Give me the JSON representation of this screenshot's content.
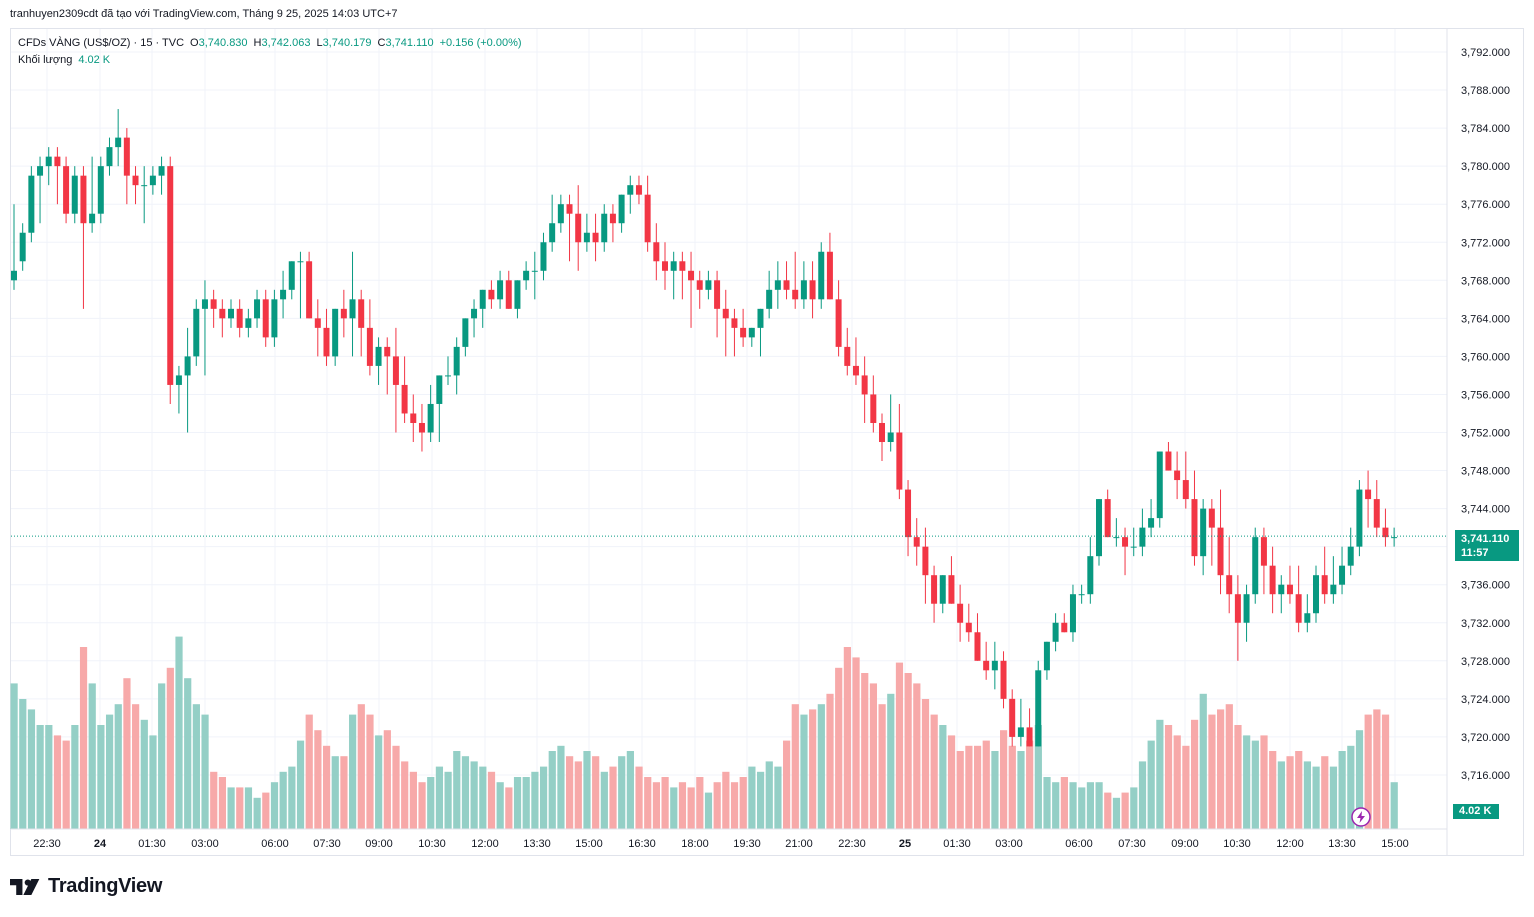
{
  "attribution": "tranhuyen2309cdt đã tạo với TradingView.com, Tháng 9 25, 2025 14:03 UTC+7",
  "legend": {
    "symbol": "CFDs VÀNG (US$/OZ) · 15 · TVC",
    "o_label": "O",
    "o_value": "3,740.830",
    "h_label": "H",
    "h_value": "3,742.063",
    "l_label": "L",
    "l_value": "3,740.179",
    "c_label": "C",
    "c_value": "3,741.110",
    "change": "+0.156 (+0.00%)",
    "volume_label": "Khối lượng",
    "volume_value": "4.02 K"
  },
  "badges": {
    "price": "3,741.110",
    "countdown": "11:57",
    "volume": "4.02 K"
  },
  "brand": {
    "name": "TradingView"
  },
  "colors": {
    "up": "#089981",
    "down": "#f23645",
    "volume_up": "#94cfc6",
    "volume_down": "#f7a9a9",
    "grid": "#f0f3fa"
  },
  "icons": [
    "tradingview-logo-icon",
    "lightning-icon"
  ],
  "chart_data": {
    "type": "candlestick",
    "interval": "15",
    "y_ticks": [
      "3,792.000",
      "3,788.000",
      "3,784.000",
      "3,780.000",
      "3,776.000",
      "3,772.000",
      "3,768.000",
      "3,764.000",
      "3,760.000",
      "3,756.000",
      "3,752.000",
      "3,748.000",
      "3,744.000",
      "3,740.000",
      "3,736.000",
      "3,732.000",
      "3,728.000",
      "3,724.000",
      "3,720.000",
      "3,716.000"
    ],
    "x_ticks": [
      "22:30",
      "24",
      "01:30",
      "03:00",
      "06:00",
      "07:30",
      "09:00",
      "10:30",
      "12:00",
      "13:30",
      "15:00",
      "16:30",
      "18:00",
      "19:30",
      "21:00",
      "22:30",
      "25",
      "01:30",
      "03:00",
      "06:00",
      "07:30",
      "09:00",
      "10:30",
      "12:00",
      "13:30",
      "15:00"
    ],
    "ylim": [
      3714,
      3794
    ],
    "last_price": 3741.11,
    "candles": [
      [
        3768,
        3776,
        3767,
        3769,
        2.8
      ],
      [
        3770,
        3774,
        3769,
        3773,
        2.5
      ],
      [
        3773,
        3780,
        3772,
        3779,
        2.3
      ],
      [
        3779,
        3781,
        3774,
        3780,
        2.0
      ],
      [
        3780,
        3782,
        3778,
        3781,
        2.0
      ],
      [
        3781,
        3782,
        3776,
        3780,
        1.8
      ],
      [
        3780,
        3781,
        3774,
        3775,
        1.7
      ],
      [
        3775,
        3780,
        3774,
        3779,
        2.0
      ],
      [
        3779,
        3780,
        3765,
        3774,
        3.5
      ],
      [
        3774,
        3781,
        3773,
        3775,
        2.8
      ],
      [
        3775,
        3781,
        3774,
        3780,
        2.0
      ],
      [
        3780,
        3783,
        3779,
        3782,
        2.2
      ],
      [
        3782,
        3786,
        3780,
        3783,
        2.4
      ],
      [
        3783,
        3784,
        3776,
        3779,
        2.9
      ],
      [
        3779,
        3780,
        3776,
        3778,
        2.4
      ],
      [
        3778,
        3780,
        3774,
        3778,
        2.1
      ],
      [
        3778,
        3780,
        3777,
        3779,
        1.8
      ],
      [
        3779,
        3781,
        3777,
        3780,
        2.8
      ],
      [
        3780,
        3781,
        3755,
        3757,
        3.1
      ],
      [
        3757,
        3759,
        3754,
        3758,
        3.7
      ],
      [
        3758,
        3763,
        3752,
        3760,
        2.9
      ],
      [
        3760,
        3766,
        3759,
        3765,
        2.4
      ],
      [
        3765,
        3768,
        3758,
        3766,
        2.2
      ],
      [
        3766,
        3767,
        3763,
        3765,
        1.1
      ],
      [
        3765,
        3766,
        3762,
        3764,
        1.0
      ],
      [
        3764,
        3766,
        3763,
        3765,
        0.8
      ],
      [
        3765,
        3766,
        3762,
        3763,
        0.8
      ],
      [
        3763,
        3765,
        3762,
        3764,
        0.8
      ],
      [
        3764,
        3767,
        3763,
        3766,
        0.6
      ],
      [
        3766,
        3767,
        3761,
        3762,
        0.7
      ],
      [
        3762,
        3767,
        3761,
        3766,
        0.9
      ],
      [
        3766,
        3769,
        3764,
        3767,
        1.1
      ],
      [
        3767,
        3770,
        3766,
        3770,
        1.2
      ],
      [
        3770,
        3771,
        3764,
        3770,
        1.7
      ],
      [
        3770,
        3771,
        3764,
        3764,
        2.2
      ],
      [
        3764,
        3766,
        3760,
        3763,
        1.9
      ],
      [
        3763,
        3765,
        3759,
        3760,
        1.6
      ],
      [
        3760,
        3765,
        3759,
        3765,
        1.4
      ],
      [
        3765,
        3767,
        3762,
        3764,
        1.4
      ],
      [
        3764,
        3771,
        3760,
        3766,
        2.2
      ],
      [
        3766,
        3767,
        3760,
        3763,
        2.4
      ],
      [
        3763,
        3766,
        3758,
        3759,
        2.2
      ],
      [
        3759,
        3762,
        3757,
        3761,
        1.8
      ],
      [
        3761,
        3762,
        3756,
        3760,
        1.9
      ],
      [
        3760,
        3763,
        3752,
        3757,
        1.6
      ],
      [
        3757,
        3760,
        3753,
        3754,
        1.3
      ],
      [
        3754,
        3756,
        3751,
        3753,
        1.1
      ],
      [
        3753,
        3755,
        3750,
        3752,
        0.9
      ],
      [
        3752,
        3757,
        3751,
        3755,
        1.0
      ],
      [
        3755,
        3758,
        3751,
        3758,
        1.2
      ],
      [
        3758,
        3760,
        3757,
        3758,
        1.1
      ],
      [
        3758,
        3762,
        3756,
        3761,
        1.5
      ],
      [
        3761,
        3764,
        3760,
        3764,
        1.4
      ],
      [
        3764,
        3766,
        3762,
        3765,
        1.3
      ],
      [
        3765,
        3767,
        3763,
        3767,
        1.2
      ],
      [
        3767,
        3768,
        3765,
        3766,
        1.1
      ],
      [
        3766,
        3769,
        3765,
        3768,
        0.9
      ],
      [
        3768,
        3769,
        3765,
        3765,
        0.8
      ],
      [
        3765,
        3768,
        3764,
        3768,
        1.0
      ],
      [
        3768,
        3770,
        3767,
        3769,
        1.0
      ],
      [
        3769,
        3771,
        3766,
        3769,
        1.1
      ],
      [
        3769,
        3773,
        3768,
        3772,
        1.2
      ],
      [
        3772,
        3777,
        3771,
        3774,
        1.5
      ],
      [
        3774,
        3777,
        3773,
        3776,
        1.6
      ],
      [
        3776,
        3777,
        3770,
        3775,
        1.4
      ],
      [
        3775,
        3778,
        3769,
        3772,
        1.3
      ],
      [
        3772,
        3775,
        3771,
        3773,
        1.5
      ],
      [
        3773,
        3775,
        3770,
        3772,
        1.4
      ],
      [
        3772,
        3776,
        3771,
        3775,
        1.1
      ],
      [
        3775,
        3776,
        3772,
        3774,
        1.2
      ],
      [
        3774,
        3777,
        3773,
        3777,
        1.4
      ],
      [
        3777,
        3779,
        3775,
        3778,
        1.5
      ],
      [
        3778,
        3779,
        3776,
        3777,
        1.2
      ],
      [
        3777,
        3779,
        3771,
        3772,
        1.0
      ],
      [
        3772,
        3774,
        3768,
        3770,
        0.9
      ],
      [
        3770,
        3772,
        3767,
        3769,
        1.0
      ],
      [
        3769,
        3771,
        3766,
        3770,
        0.8
      ],
      [
        3770,
        3771,
        3766,
        3769,
        0.9
      ],
      [
        3769,
        3771,
        3763,
        3768,
        0.8
      ],
      [
        3768,
        3769,
        3765,
        3767,
        1.0
      ],
      [
        3767,
        3769,
        3766,
        3768,
        0.7
      ],
      [
        3768,
        3769,
        3762,
        3765,
        0.9
      ],
      [
        3765,
        3767,
        3760,
        3764,
        1.1
      ],
      [
        3764,
        3765,
        3760,
        3763,
        0.9
      ],
      [
        3763,
        3765,
        3761,
        3762,
        1.0
      ],
      [
        3762,
        3763,
        3761,
        3763,
        1.2
      ],
      [
        3763,
        3765,
        3760,
        3765,
        1.1
      ],
      [
        3765,
        3769,
        3764,
        3767,
        1.3
      ],
      [
        3767,
        3770,
        3765,
        3768,
        1.2
      ],
      [
        3768,
        3770,
        3766,
        3767,
        1.7
      ],
      [
        3767,
        3771,
        3765,
        3766,
        2.4
      ],
      [
        3766,
        3770,
        3765,
        3768,
        2.2
      ],
      [
        3768,
        3770,
        3764,
        3766,
        2.3
      ],
      [
        3766,
        3772,
        3765,
        3771,
        2.4
      ],
      [
        3771,
        3773,
        3766,
        3766,
        2.6
      ],
      [
        3766,
        3768,
        3760,
        3761,
        3.1
      ],
      [
        3761,
        3763,
        3758,
        3759,
        3.5
      ],
      [
        3759,
        3762,
        3757,
        3758,
        3.3
      ],
      [
        3758,
        3760,
        3753,
        3756,
        3.0
      ],
      [
        3756,
        3758,
        3752,
        3753,
        2.8
      ],
      [
        3753,
        3754,
        3749,
        3751,
        2.4
      ],
      [
        3751,
        3756,
        3750,
        3752,
        2.6
      ],
      [
        3752,
        3755,
        3745,
        3746,
        3.2
      ],
      [
        3746,
        3747,
        3739,
        3741,
        3.0
      ],
      [
        3741,
        3743,
        3738,
        3740,
        2.8
      ],
      [
        3740,
        3742,
        3734,
        3737,
        2.5
      ],
      [
        3737,
        3738,
        3732,
        3734,
        2.2
      ],
      [
        3734,
        3737,
        3733,
        3737,
        2.0
      ],
      [
        3737,
        3739,
        3734,
        3734,
        1.8
      ],
      [
        3734,
        3736,
        3730,
        3732,
        1.5
      ],
      [
        3732,
        3734,
        3730,
        3731,
        1.6
      ],
      [
        3731,
        3733,
        3728,
        3728,
        1.6
      ],
      [
        3728,
        3730,
        3726,
        3727,
        1.7
      ],
      [
        3727,
        3730,
        3725,
        3728,
        1.5
      ],
      [
        3728,
        3729,
        3723,
        3724,
        1.9
      ],
      [
        3724,
        3725,
        3719,
        3720,
        1.6
      ],
      [
        3720,
        3724,
        3719,
        3721,
        1.5
      ],
      [
        3721,
        3723,
        3719,
        3719,
        1.7
      ],
      [
        3719,
        3728,
        3719,
        3727,
        2.0
      ],
      [
        3727,
        3730,
        3726,
        3730,
        1.0
      ],
      [
        3730,
        3733,
        3729,
        3732,
        0.9
      ],
      [
        3732,
        3733,
        3731,
        3731,
        1.0
      ],
      [
        3731,
        3736,
        3730,
        3735,
        0.9
      ],
      [
        3735,
        3736,
        3734,
        3735,
        0.8
      ],
      [
        3735,
        3741,
        3734,
        3739,
        0.9
      ],
      [
        3739,
        3745,
        3738,
        3745,
        0.9
      ],
      [
        3745,
        3746,
        3741,
        3741,
        0.7
      ],
      [
        3741,
        3743,
        3740,
        3741,
        0.6
      ],
      [
        3741,
        3742,
        3737,
        3740,
        0.7
      ],
      [
        3740,
        3742,
        3739,
        3740,
        0.8
      ],
      [
        3740,
        3744,
        3739,
        3742,
        1.3
      ],
      [
        3742,
        3745,
        3741,
        3743,
        1.7
      ],
      [
        3743,
        3750,
        3742,
        3750,
        2.1
      ],
      [
        3750,
        3751,
        3748,
        3748,
        2.0
      ],
      [
        3748,
        3750,
        3745,
        3747,
        1.8
      ],
      [
        3747,
        3750,
        3744,
        3745,
        1.6
      ],
      [
        3745,
        3748,
        3738,
        3739,
        2.1
      ],
      [
        3739,
        3745,
        3737,
        3744,
        2.6
      ],
      [
        3744,
        3745,
        3738,
        3742,
        2.2
      ],
      [
        3742,
        3746,
        3735,
        3737,
        2.3
      ],
      [
        3737,
        3741,
        3733,
        3735,
        2.4
      ],
      [
        3735,
        3737,
        3728,
        3732,
        2.0
      ],
      [
        3732,
        3736,
        3730,
        3735,
        1.8
      ],
      [
        3735,
        3742,
        3734,
        3741,
        1.7
      ],
      [
        3741,
        3742,
        3735,
        3738,
        1.8
      ],
      [
        3738,
        3740,
        3733,
        3735,
        1.5
      ],
      [
        3735,
        3737,
        3733,
        3736,
        1.3
      ],
      [
        3736,
        3738,
        3734,
        3735,
        1.4
      ],
      [
        3735,
        3738,
        3731,
        3732,
        1.5
      ],
      [
        3732,
        3735,
        3731,
        3733,
        1.3
      ],
      [
        3733,
        3738,
        3732,
        3737,
        1.2
      ],
      [
        3737,
        3740,
        3734,
        3735,
        1.4
      ],
      [
        3735,
        3739,
        3734,
        3736,
        1.2
      ],
      [
        3736,
        3740,
        3735,
        3738,
        1.5
      ],
      [
        3738,
        3742,
        3737,
        3740,
        1.6
      ],
      [
        3740,
        3747,
        3739,
        3746,
        1.9
      ],
      [
        3746,
        3748,
        3742,
        3745,
        2.2
      ],
      [
        3745,
        3747,
        3741,
        3742,
        2.3
      ],
      [
        3742,
        3744,
        3740,
        3741,
        2.2
      ],
      [
        3741,
        3742,
        3740,
        3741,
        0.9
      ]
    ]
  }
}
